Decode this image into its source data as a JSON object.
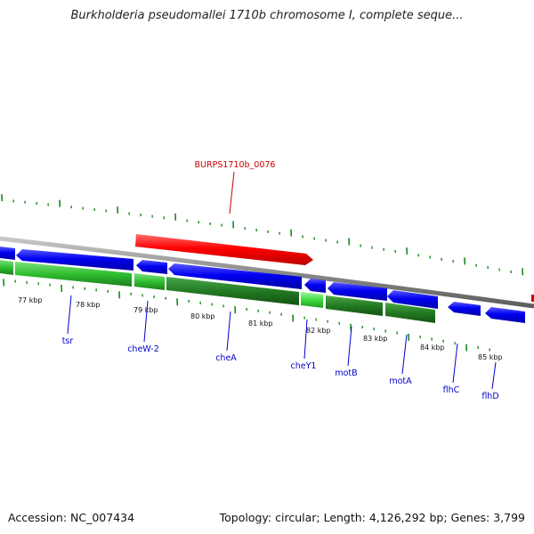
{
  "title": "Burkholderia pseudomallei 1710b chromosome I, complete seque...",
  "footer": {
    "accession": "Accession: NC_007434",
    "topology": "Topology: circular; Length: 4,126,292 bp; Genes: 3,799"
  },
  "highlight_label": "BURPS1710b_0076",
  "kbp_labels": [
    "77 kbp",
    "78 kbp",
    "79 kbp",
    "80 kbp",
    "81 kbp",
    "82 kbp",
    "83 kbp",
    "84 kbp",
    "85 kbp"
  ],
  "gene_labels": [
    "tsr",
    "cheW-2",
    "cheA",
    "cheY1",
    "motB",
    "motA",
    "flhC",
    "flhD"
  ],
  "colors": {
    "feature_red": "#ff0000",
    "gene_blue": "#0000ee",
    "cds_green": "#2db52d",
    "cds_green_dark": "#1f7a1f",
    "backbone_grey": "#8c8c8c",
    "tick_green": "#1a8a1a",
    "label_blue": "#0000cc",
    "label_red": "#cc0000"
  }
}
